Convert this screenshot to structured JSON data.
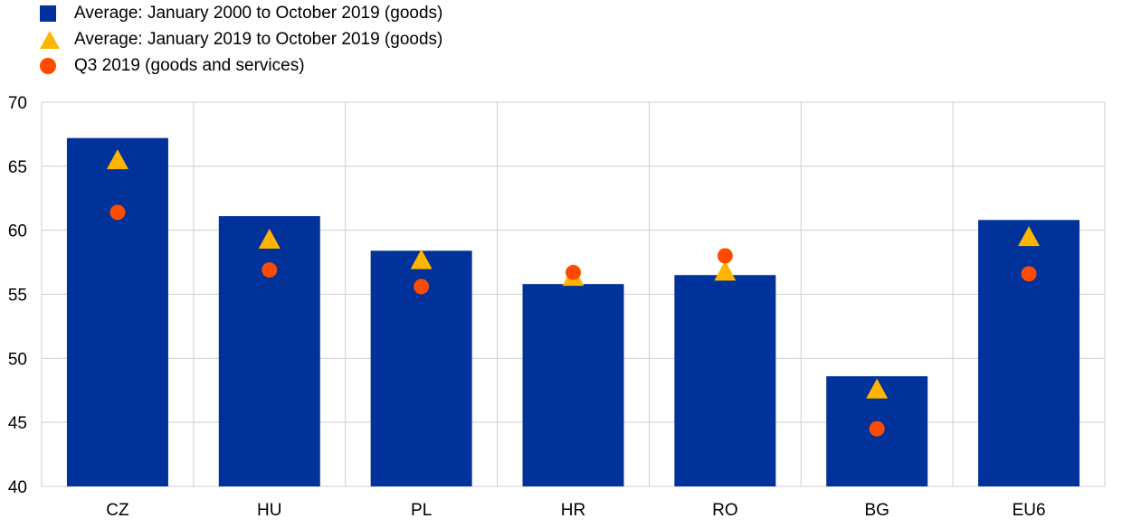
{
  "chart_data": {
    "type": "bar",
    "categories": [
      "CZ",
      "HU",
      "PL",
      "HR",
      "RO",
      "BG",
      "EU6"
    ],
    "series": [
      {
        "name": "Average: January 2000 to October 2019 (goods)",
        "kind": "bar",
        "marker": "square",
        "color": "#003299",
        "values": [
          67.2,
          61.1,
          58.4,
          55.8,
          56.5,
          48.6,
          60.8
        ]
      },
      {
        "name": "Average: January 2019 to October 2019 (goods)",
        "kind": "marker",
        "marker": "triangle",
        "color": "#FFB400",
        "values": [
          65.4,
          59.2,
          57.6,
          56.3,
          56.7,
          47.5,
          59.4
        ]
      },
      {
        "name": "Q3 2019 (goods and services)",
        "kind": "marker",
        "marker": "circle",
        "color": "#FF4B00",
        "values": [
          61.4,
          56.9,
          55.6,
          56.7,
          58.0,
          44.5,
          56.6
        ]
      }
    ],
    "ylim": [
      40,
      70
    ],
    "yticks": [
      40,
      45,
      50,
      55,
      60,
      65,
      70
    ],
    "grid": true,
    "legend_position": "top-left",
    "title": "",
    "xlabel": "",
    "ylabel": ""
  }
}
